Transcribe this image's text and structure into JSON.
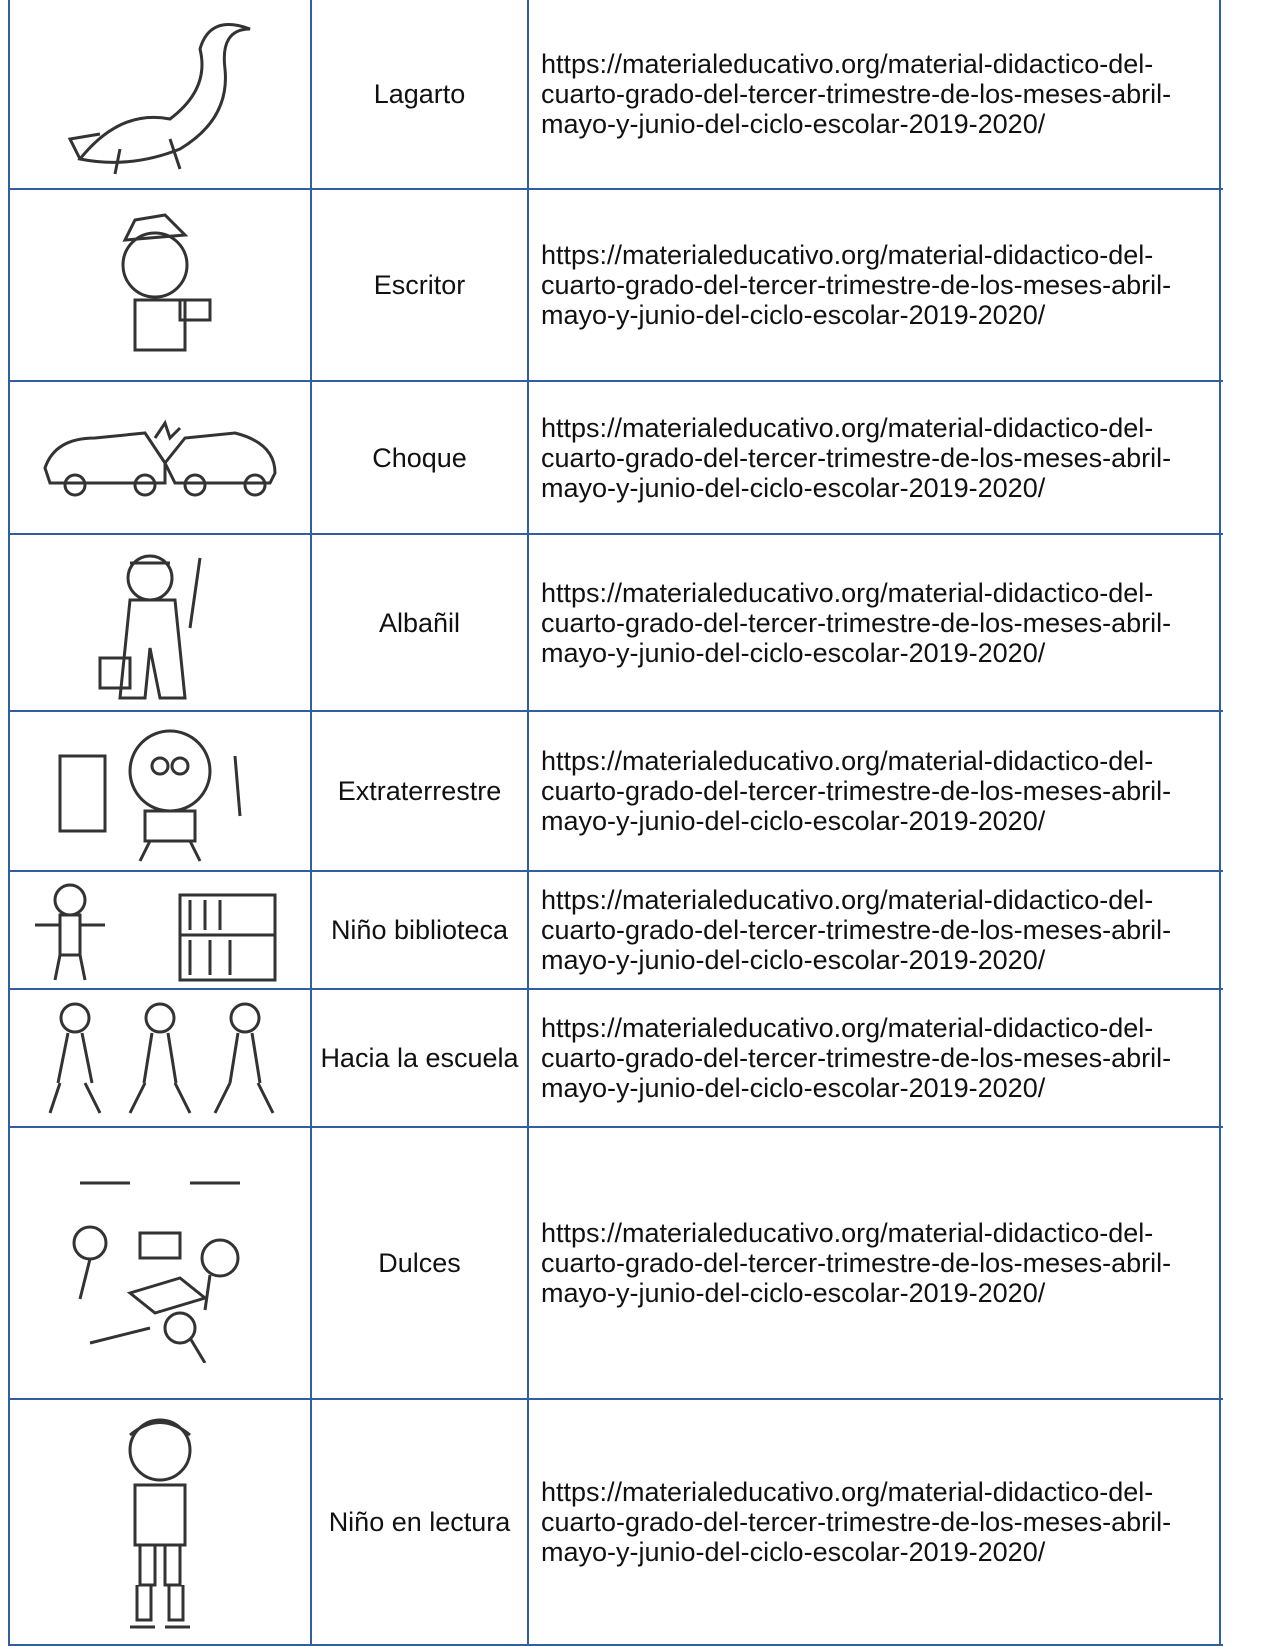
{
  "table": {
    "rows": [
      [
        "Lagarto",
        "https://materialeducativo.org/material-didactico-del-cuarto-grado-del-tercer-trimestre-de-los-meses-abril-mayo-y-junio-del-ciclo-escolar-2019-2020/"
      ],
      [
        "Escritor",
        "https://materialeducativo.org/material-didactico-del-cuarto-grado-del-tercer-trimestre-de-los-meses-abril-mayo-y-junio-del-ciclo-escolar-2019-2020/"
      ],
      [
        "Choque",
        "https://materialeducativo.org/material-didactico-del-cuarto-grado-del-tercer-trimestre-de-los-meses-abril-mayo-y-junio-del-ciclo-escolar-2019-2020/"
      ],
      [
        "Albañil",
        "https://materialeducativo.org/material-didactico-del-cuarto-grado-del-tercer-trimestre-de-los-meses-abril-mayo-y-junio-del-ciclo-escolar-2019-2020/"
      ],
      [
        "Extraterrestre",
        "https://materialeducativo.org/material-didactico-del-cuarto-grado-del-tercer-trimestre-de-los-meses-abril-mayo-y-junio-del-ciclo-escolar-2019-2020/"
      ],
      [
        "Niño biblioteca",
        "https://materialeducativo.org/material-didactico-del-cuarto-grado-del-tercer-trimestre-de-los-meses-abril-mayo-y-junio-del-ciclo-escolar-2019-2020/"
      ],
      [
        "Hacia la escuela",
        "https://materialeducativo.org/material-didactico-del-cuarto-grado-del-tercer-trimestre-de-los-meses-abril-mayo-y-junio-del-ciclo-escolar-2019-2020/"
      ],
      [
        "Dulces",
        "https://materialeducativo.org/material-didactico-del-cuarto-grado-del-tercer-trimestre-de-los-meses-abril-mayo-y-junio-del-ciclo-escolar-2019-2020/"
      ],
      [
        "Niño en lectura",
        "https://materialeducativo.org/material-didactico-del-cuarto-grado-del-tercer-trimestre-de-los-meses-abril-mayo-y-junio-del-ciclo-escolar-2019-2020/"
      ]
    ]
  }
}
